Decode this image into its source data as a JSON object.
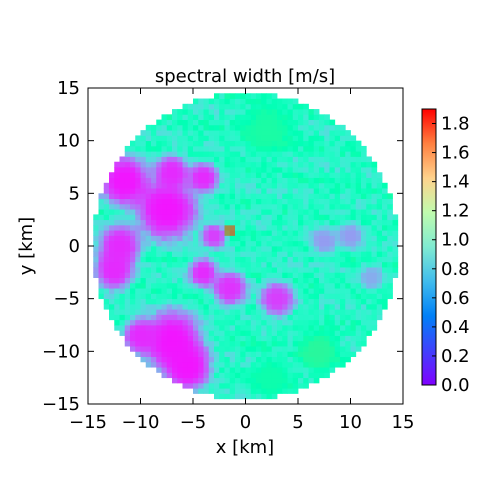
{
  "chart_data": {
    "type": "heatmap",
    "title": "spectral width [m/s]",
    "xlabel": "x [km]",
    "ylabel": "y [km]",
    "xlim": [
      -15,
      15
    ],
    "ylim": [
      -15,
      15
    ],
    "x_ticks": [
      -15,
      -10,
      -5,
      0,
      5,
      10,
      15
    ],
    "y_ticks": [
      -15,
      -10,
      -5,
      0,
      5,
      10,
      15
    ],
    "x_tick_labels": [
      "−15",
      "−10",
      "−5",
      "0",
      "5",
      "10",
      "15"
    ],
    "y_tick_labels": [
      "−15",
      "−10",
      "−5",
      "0",
      "5",
      "10",
      "15"
    ],
    "colorbar": {
      "colormap": "rainbow",
      "range": [
        0.0,
        1.9
      ],
      "ticks": [
        0.0,
        0.2,
        0.4,
        0.6,
        0.8,
        1.0,
        1.2,
        1.4,
        1.6,
        1.8
      ],
      "tick_labels": [
        "0.0",
        "0.2",
        "0.4",
        "0.6",
        "0.8",
        "1.0",
        "1.2",
        "1.4",
        "1.6",
        "1.8"
      ]
    },
    "grid": false,
    "data_region": {
      "shape": "circle",
      "center": [
        0,
        0
      ],
      "radius_km": 14.6
    },
    "cell_size_km": 0.5,
    "background_value": 0.82,
    "features": [
      {
        "type": "low",
        "center": [
          -7.5,
          3.5
        ],
        "radius_km": 3.2,
        "value": 0.05
      },
      {
        "type": "low",
        "center": [
          -11.5,
          6.2
        ],
        "radius_km": 2.6,
        "value": 0.05
      },
      {
        "type": "low",
        "center": [
          -12.0,
          0.0
        ],
        "radius_km": 2.2,
        "value": 0.1
      },
      {
        "type": "low",
        "center": [
          -12.5,
          -2.3
        ],
        "radius_km": 2.0,
        "value": 0.1
      },
      {
        "type": "low",
        "center": [
          -7.0,
          7.0
        ],
        "radius_km": 1.8,
        "value": 0.1
      },
      {
        "type": "low",
        "center": [
          -4.0,
          6.5
        ],
        "radius_km": 1.6,
        "value": 0.1
      },
      {
        "type": "low",
        "center": [
          -7.0,
          -9.0
        ],
        "radius_km": 3.2,
        "value": 0.05
      },
      {
        "type": "low",
        "center": [
          -5.5,
          -11.5
        ],
        "radius_km": 2.4,
        "value": 0.05
      },
      {
        "type": "low",
        "center": [
          -10.0,
          -8.5
        ],
        "radius_km": 1.8,
        "value": 0.1
      },
      {
        "type": "low",
        "center": [
          -4.0,
          -2.5
        ],
        "radius_km": 1.5,
        "value": 0.1
      },
      {
        "type": "low",
        "center": [
          -1.5,
          -4.0
        ],
        "radius_km": 1.8,
        "value": 0.12
      },
      {
        "type": "low",
        "center": [
          3.0,
          -5.0
        ],
        "radius_km": 1.8,
        "value": 0.15
      },
      {
        "type": "low",
        "center": [
          -3.0,
          1.0
        ],
        "radius_km": 1.3,
        "value": 0.15
      },
      {
        "type": "low",
        "center": [
          7.5,
          0.5
        ],
        "radius_km": 1.4,
        "value": 0.4
      },
      {
        "type": "low",
        "center": [
          10.0,
          1.0
        ],
        "radius_km": 1.4,
        "value": 0.4
      },
      {
        "type": "low",
        "center": [
          12.0,
          -3.0
        ],
        "radius_km": 1.3,
        "value": 0.45
      },
      {
        "type": "high",
        "center": [
          -1.5,
          1.5
        ],
        "radius_km": 0.5,
        "value": 1.75
      },
      {
        "type": "high",
        "center": [
          2.0,
          11.0
        ],
        "radius_km": 2.5,
        "value": 1.05
      },
      {
        "type": "high",
        "center": [
          7.0,
          -10.0
        ],
        "radius_km": 2.0,
        "value": 1.1
      },
      {
        "type": "high",
        "center": [
          2.5,
          -12.5
        ],
        "radius_km": 2.0,
        "value": 1.0
      }
    ]
  }
}
